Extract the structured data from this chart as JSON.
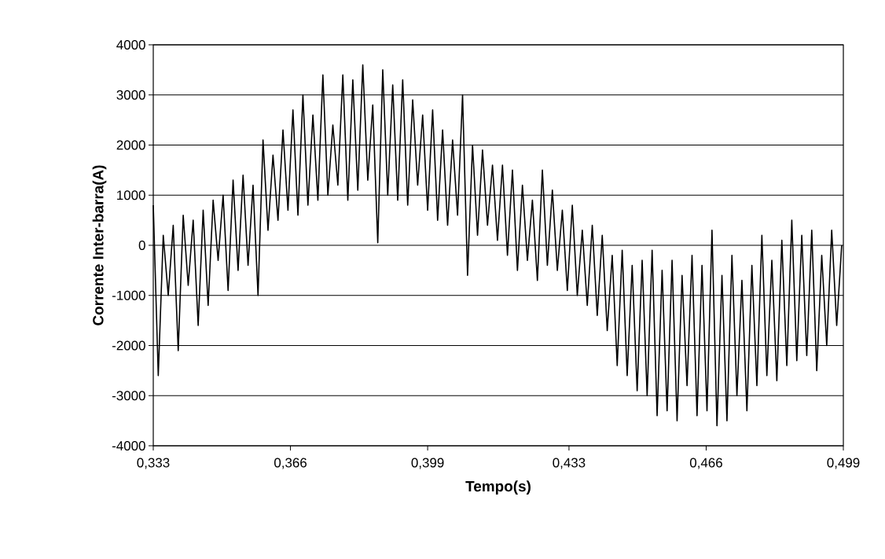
{
  "chart_data": {
    "type": "line",
    "xlabel": "Tempo(s)",
    "ylabel": "Corrente Inter-barra(A)",
    "xlim": [
      0.333,
      0.499
    ],
    "xticks": [
      {
        "value": 0.333,
        "label": "0,333"
      },
      {
        "value": 0.366,
        "label": "0,366"
      },
      {
        "value": 0.399,
        "label": "0,399"
      },
      {
        "value": 0.433,
        "label": "0,433"
      },
      {
        "value": 0.466,
        "label": "0,466"
      },
      {
        "value": 0.499,
        "label": "0,499"
      }
    ],
    "ylim": [
      -4000,
      4000
    ],
    "yticks": [
      -4000,
      -3000,
      -2000,
      -1000,
      0,
      1000,
      2000,
      3000,
      4000
    ],
    "grid": "y",
    "color": "#000000",
    "x": [
      0.333,
      0.3342,
      0.3354,
      0.3366,
      0.3378,
      0.339,
      0.3402,
      0.3414,
      0.3426,
      0.3438,
      0.345,
      0.3462,
      0.3474,
      0.3486,
      0.3498,
      0.351,
      0.3522,
      0.3534,
      0.3546,
      0.3558,
      0.357,
      0.3582,
      0.3594,
      0.3606,
      0.3618,
      0.363,
      0.3642,
      0.3654,
      0.3666,
      0.3678,
      0.369,
      0.3702,
      0.3714,
      0.3726,
      0.3738,
      0.375,
      0.3762,
      0.3774,
      0.3786,
      0.3798,
      0.381,
      0.3822,
      0.3834,
      0.3846,
      0.3858,
      0.387,
      0.3882,
      0.3894,
      0.3906,
      0.3918,
      0.393,
      0.3942,
      0.3954,
      0.3966,
      0.3978,
      0.399,
      0.4002,
      0.4014,
      0.4026,
      0.4038,
      0.405,
      0.4062,
      0.4074,
      0.4086,
      0.4098,
      0.411,
      0.4122,
      0.4134,
      0.4146,
      0.4158,
      0.417,
      0.4182,
      0.4194,
      0.4206,
      0.4218,
      0.423,
      0.4242,
      0.4254,
      0.4266,
      0.4278,
      0.429,
      0.4302,
      0.4314,
      0.4326,
      0.4338,
      0.435,
      0.4362,
      0.4374,
      0.4386,
      0.4398,
      0.441,
      0.4422,
      0.4434,
      0.4446,
      0.4458,
      0.447,
      0.4482,
      0.4494,
      0.4506,
      0.4518,
      0.453,
      0.4542,
      0.4554,
      0.4566,
      0.4578,
      0.459,
      0.4602,
      0.4614,
      0.4626,
      0.4638,
      0.465,
      0.4662,
      0.4674,
      0.4686,
      0.4698,
      0.471,
      0.4722,
      0.4734,
      0.4746,
      0.4758,
      0.477,
      0.4782,
      0.4794,
      0.4806,
      0.4818,
      0.483,
      0.4842,
      0.4854,
      0.4866,
      0.4878,
      0.489,
      0.4902,
      0.4914,
      0.4926,
      0.4938,
      0.495,
      0.4962,
      0.4974,
      0.4986
    ],
    "values": [
      800,
      -2600,
      200,
      -1000,
      400,
      -2100,
      600,
      -800,
      500,
      -1600,
      700,
      -1200,
      900,
      -300,
      1000,
      -900,
      1300,
      -500,
      1400,
      -400,
      1200,
      -1000,
      2100,
      300,
      1800,
      500,
      2300,
      700,
      2700,
      600,
      3000,
      800,
      2600,
      900,
      3400,
      1000,
      2400,
      1200,
      3400,
      900,
      3300,
      1100,
      3600,
      1300,
      2800,
      50,
      3500,
      1000,
      3200,
      900,
      3300,
      800,
      2900,
      1200,
      2600,
      700,
      2700,
      500,
      2300,
      400,
      2100,
      600,
      3000,
      -600,
      2000,
      200,
      1900,
      400,
      1600,
      100,
      1600,
      -200,
      1500,
      -500,
      1200,
      -300,
      900,
      -700,
      1500,
      -400,
      1100,
      -500,
      700,
      -900,
      800,
      -1000,
      300,
      -1200,
      400,
      -1400,
      200,
      -1700,
      -200,
      -2400,
      -100,
      -2600,
      -400,
      -2900,
      -300,
      -3000,
      -100,
      -3400,
      -500,
      -3300,
      -300,
      -3500,
      -600,
      -2800,
      -200,
      -3400,
      -400,
      -3300,
      300,
      -3600,
      -600,
      -3500,
      -200,
      -3000,
      -700,
      -3300,
      -400,
      -2800,
      200,
      -2600,
      -300,
      -2700,
      100,
      -2400,
      500,
      -2300,
      200,
      -2200,
      300,
      -2500,
      -200,
      -2000,
      300,
      -1600,
      0
    ]
  }
}
